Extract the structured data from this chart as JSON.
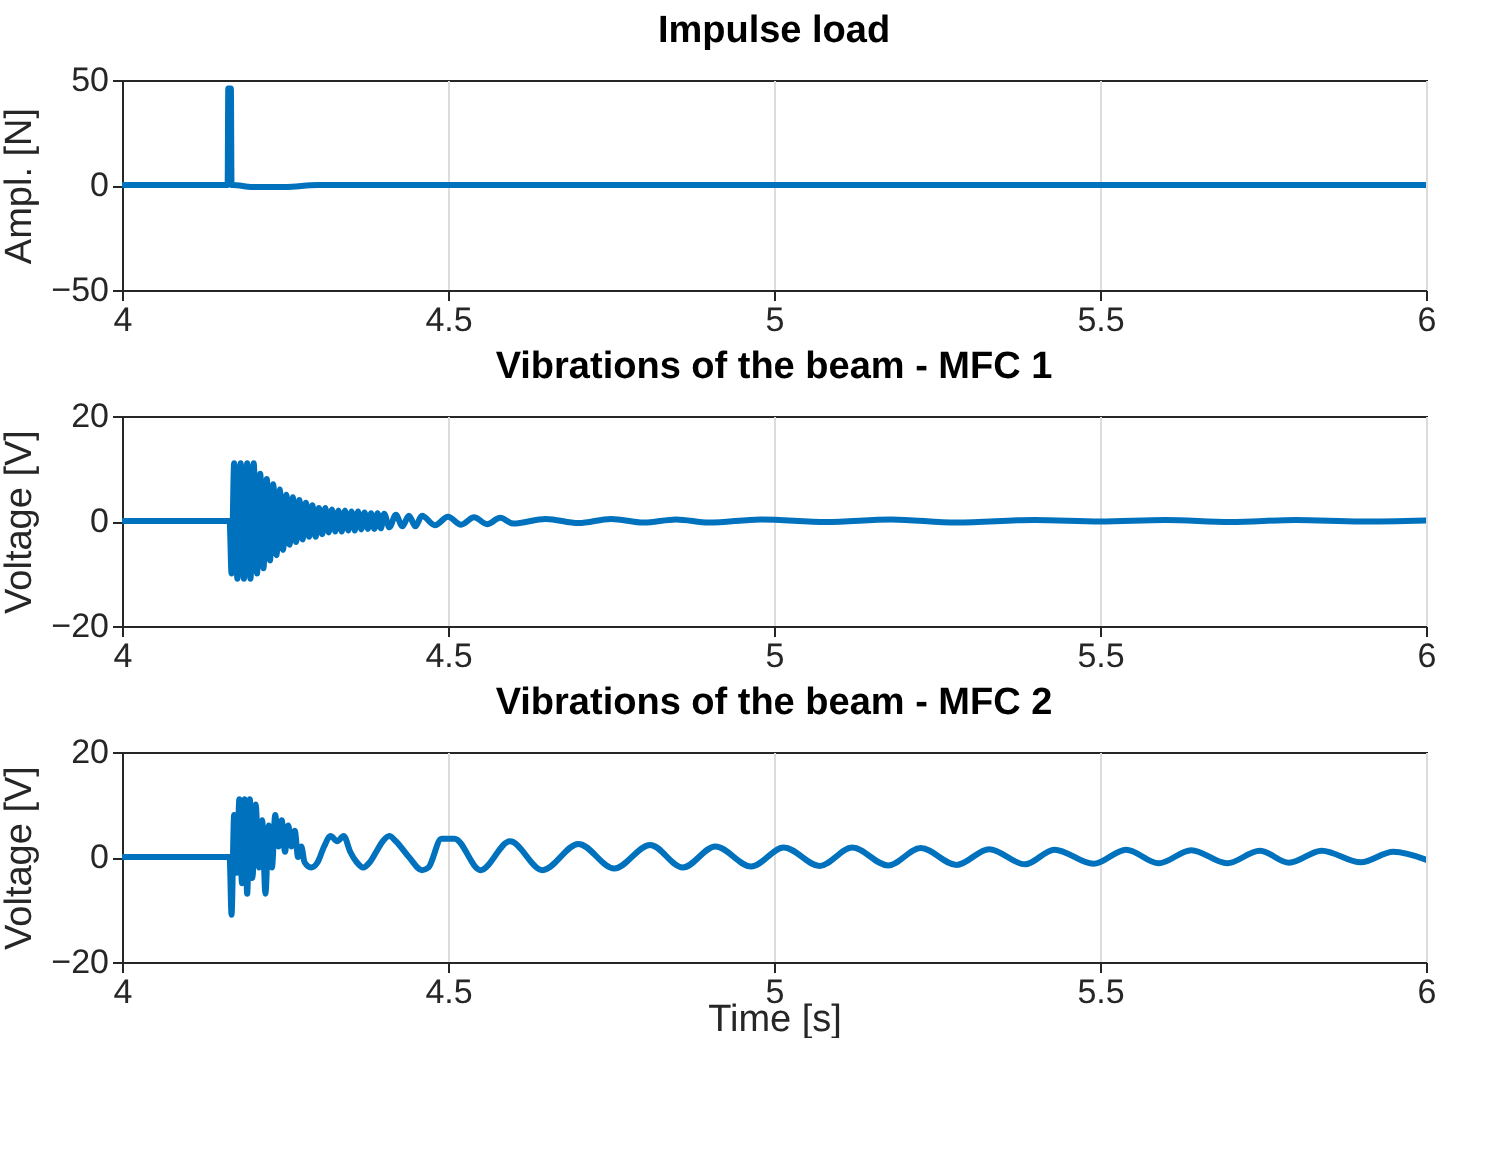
{
  "chart_data": [
    {
      "type": "line",
      "title": "Impulse load",
      "ylabel": "Ampl. [N]",
      "x": [
        4,
        4.16,
        4.162,
        4.163,
        4.167,
        4.168,
        4.17,
        4.2,
        4.25,
        4.3,
        6
      ],
      "series": [
        {
          "color": "#0072bd",
          "values": [
            0,
            0,
            0,
            46,
            46,
            0,
            0,
            -1,
            -1,
            0,
            0
          ]
        }
      ],
      "xlim": [
        4,
        6
      ],
      "xticks": [
        4,
        4.5,
        5,
        5.5,
        6
      ],
      "ylim": [
        -50,
        50
      ],
      "yticks": [
        -50,
        0,
        50
      ],
      "grid": "x",
      "line_style": "solid"
    },
    {
      "type": "line",
      "title": "Vibrations of the beam - MFC 1",
      "ylabel": "Voltage [V]",
      "x": [
        4,
        4.165,
        4.168,
        4.172,
        4.177,
        4.182,
        4.187,
        4.192,
        4.197,
        4.202,
        4.207,
        4.212,
        4.217,
        4.222,
        4.227,
        4.232,
        4.237,
        4.242,
        4.247,
        4.252,
        4.257,
        4.262,
        4.267,
        4.272,
        4.277,
        4.282,
        4.287,
        4.292,
        4.297,
        4.302,
        4.307,
        4.312,
        4.317,
        4.322,
        4.327,
        4.332,
        4.337,
        4.342,
        4.347,
        4.352,
        4.357,
        4.362,
        4.367,
        4.372,
        4.377,
        4.382,
        4.387,
        4.392,
        4.397,
        4.402,
        4.41,
        4.42,
        4.43,
        4.44,
        4.45,
        4.46,
        4.48,
        4.5,
        4.52,
        4.54,
        4.56,
        4.58,
        4.6,
        4.65,
        4.7,
        4.75,
        4.8,
        4.85,
        4.9,
        4.98,
        5.08,
        5.18,
        5.28,
        5.4,
        5.5,
        5.6,
        5.7,
        5.8,
        5.9,
        6
      ],
      "series": [
        {
          "color": "#0072bd",
          "values": [
            0,
            0,
            -10,
            11,
            -11,
            11,
            -11,
            11,
            -11,
            11,
            -10,
            9,
            -9,
            8,
            -7.5,
            7,
            -6.5,
            6,
            -5.5,
            5,
            -4.5,
            4.5,
            -4,
            4,
            -3.5,
            3.5,
            -3,
            3,
            -3,
            2.5,
            -2.5,
            2.5,
            -2.2,
            2.2,
            -2,
            2,
            -2,
            2,
            -1.8,
            1.8,
            -1.8,
            1.8,
            -1.6,
            1.6,
            -1.5,
            1.5,
            -1.5,
            1.5,
            -1.4,
            1.4,
            -1.2,
            1.2,
            -1,
            1,
            -1,
            1,
            -0.8,
            0.8,
            -0.7,
            0.7,
            -0.6,
            0.6,
            -0.5,
            0.4,
            -0.4,
            0.4,
            -0.3,
            0.3,
            -0.3,
            0.3,
            -0.2,
            0.3,
            -0.3,
            0.2,
            -0.1,
            0.2,
            -0.2,
            0.2,
            -0.1,
            0.1
          ]
        }
      ],
      "xlim": [
        4,
        6
      ],
      "xticks": [
        4,
        4.5,
        5,
        5.5,
        6
      ],
      "ylim": [
        -20,
        20
      ],
      "yticks": [
        -20,
        0,
        20
      ],
      "grid": "x",
      "line_style": "solid"
    },
    {
      "type": "line",
      "title": "Vibrations of the beam - MFC 2",
      "xlabel": "Time [s]",
      "ylabel": "Voltage [V]",
      "x": [
        4,
        4.165,
        4.168,
        4.172,
        4.176,
        4.18,
        4.184,
        4.188,
        4.192,
        4.196,
        4.2,
        4.205,
        4.21,
        4.215,
        4.22,
        4.225,
        4.23,
        4.235,
        4.24,
        4.245,
        4.25,
        4.255,
        4.26,
        4.265,
        4.27,
        4.275,
        4.28,
        4.29,
        4.3,
        4.31,
        4.32,
        4.33,
        4.34,
        4.35,
        4.36,
        4.37,
        4.38,
        4.39,
        4.4,
        4.41,
        4.42,
        4.44,
        4.46,
        4.47,
        4.49,
        4.51,
        4.55,
        4.595,
        4.645,
        4.7,
        4.755,
        4.81,
        4.86,
        4.91,
        4.965,
        5.015,
        5.07,
        5.12,
        5.175,
        5.225,
        5.28,
        5.33,
        5.385,
        5.43,
        5.49,
        5.54,
        5.59,
        5.64,
        5.695,
        5.745,
        5.79,
        5.84,
        5.9,
        5.95,
        6
      ],
      "series": [
        {
          "color": "#0072bd",
          "values": [
            0,
            0,
            -11,
            8,
            -3,
            11,
            -5,
            11,
            -7,
            11,
            -4,
            10,
            -2,
            7,
            -7,
            6,
            -2,
            8,
            2,
            7,
            1,
            6,
            2,
            5,
            0,
            2,
            -1,
            -2,
            -1,
            2,
            4,
            3,
            4,
            1,
            -1,
            -2,
            -1,
            1,
            3,
            4,
            3,
            0,
            -2.5,
            -2,
            3.5,
            3.5,
            -2.5,
            3,
            -2.5,
            2.5,
            -2.2,
            2.3,
            -2,
            2,
            -1.8,
            1.8,
            -1.7,
            1.8,
            -1.6,
            1.7,
            -1.5,
            1.5,
            -1.4,
            1.4,
            -1.3,
            1.4,
            -1.2,
            1.3,
            -1.2,
            1.2,
            -1.1,
            1.2,
            -1,
            1,
            -0.5
          ]
        }
      ],
      "xlim": [
        4,
        6
      ],
      "xticks": [
        4,
        4.5,
        5,
        5.5,
        6
      ],
      "ylim": [
        -20,
        20
      ],
      "yticks": [
        -20,
        0,
        20
      ],
      "grid": "x",
      "line_style": "solid"
    }
  ]
}
